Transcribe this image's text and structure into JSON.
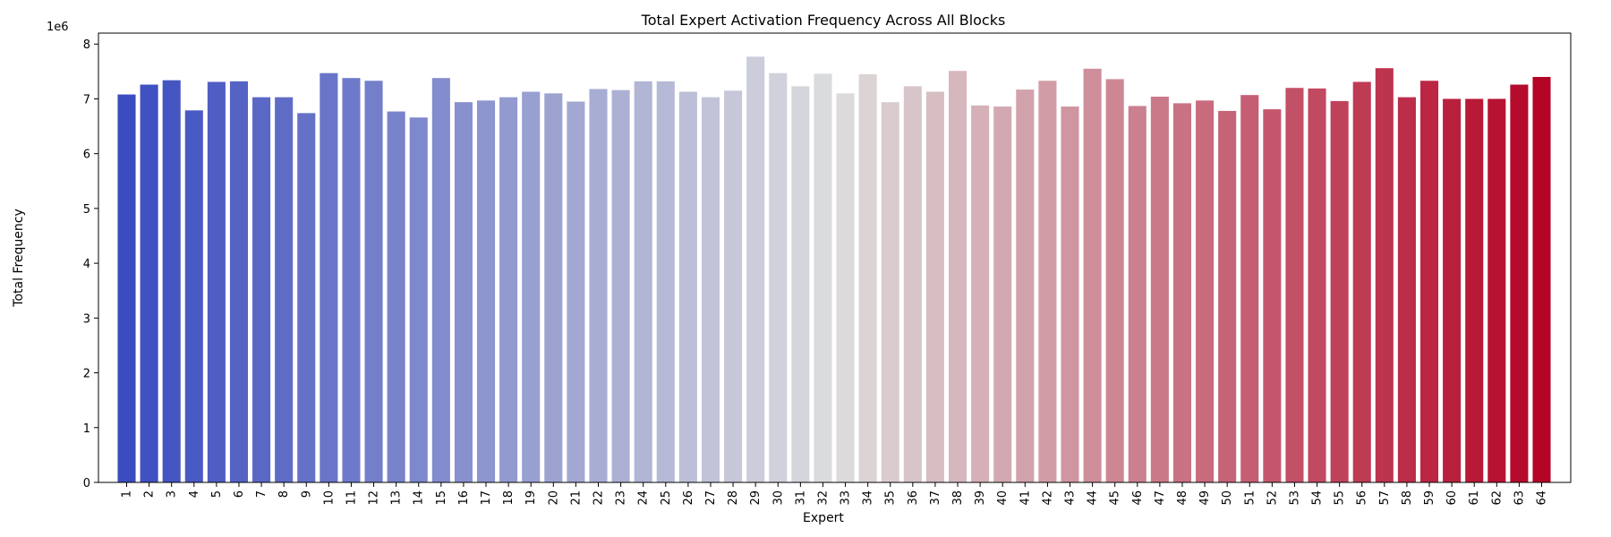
{
  "chart_data": {
    "type": "bar",
    "title": "Total Expert Activation Frequency Across All Blocks",
    "xlabel": "Expert",
    "ylabel": "Total Frequency",
    "y_multiplier_label": "1e6",
    "ylim": [
      0,
      8.2
    ],
    "yticks": [
      0,
      1,
      2,
      3,
      4,
      5,
      6,
      7,
      8
    ],
    "grid": false,
    "colormap": "coolwarm",
    "color_start": "#3b4cc0",
    "color_mid": "#dddddd",
    "color_end": "#b40426",
    "categories": [
      "1",
      "2",
      "3",
      "4",
      "5",
      "6",
      "7",
      "8",
      "9",
      "10",
      "11",
      "12",
      "13",
      "14",
      "15",
      "16",
      "17",
      "18",
      "19",
      "20",
      "21",
      "22",
      "23",
      "24",
      "25",
      "26",
      "27",
      "28",
      "29",
      "30",
      "31",
      "32",
      "33",
      "34",
      "35",
      "36",
      "37",
      "38",
      "39",
      "40",
      "41",
      "42",
      "43",
      "44",
      "45",
      "46",
      "47",
      "48",
      "49",
      "50",
      "51",
      "52",
      "53",
      "54",
      "55",
      "56",
      "57",
      "58",
      "59",
      "60",
      "61",
      "62",
      "63",
      "64"
    ],
    "values": [
      7.08,
      7.26,
      7.34,
      6.79,
      7.31,
      7.32,
      7.03,
      7.03,
      6.74,
      7.47,
      7.38,
      7.33,
      6.77,
      6.66,
      7.38,
      6.94,
      6.97,
      7.03,
      7.13,
      7.1,
      6.95,
      7.18,
      7.16,
      7.32,
      7.32,
      7.13,
      7.03,
      7.15,
      7.77,
      7.47,
      7.23,
      7.46,
      7.1,
      7.45,
      6.94,
      7.23,
      7.13,
      7.51,
      6.88,
      6.86,
      7.17,
      7.33,
      6.86,
      7.55,
      7.36,
      6.87,
      7.04,
      6.92,
      6.97,
      6.78,
      7.07,
      6.81,
      7.2,
      7.19,
      6.96,
      7.31,
      7.56,
      7.03,
      7.33,
      7.0,
      7.0,
      7.0,
      7.26,
      7.4
    ]
  }
}
